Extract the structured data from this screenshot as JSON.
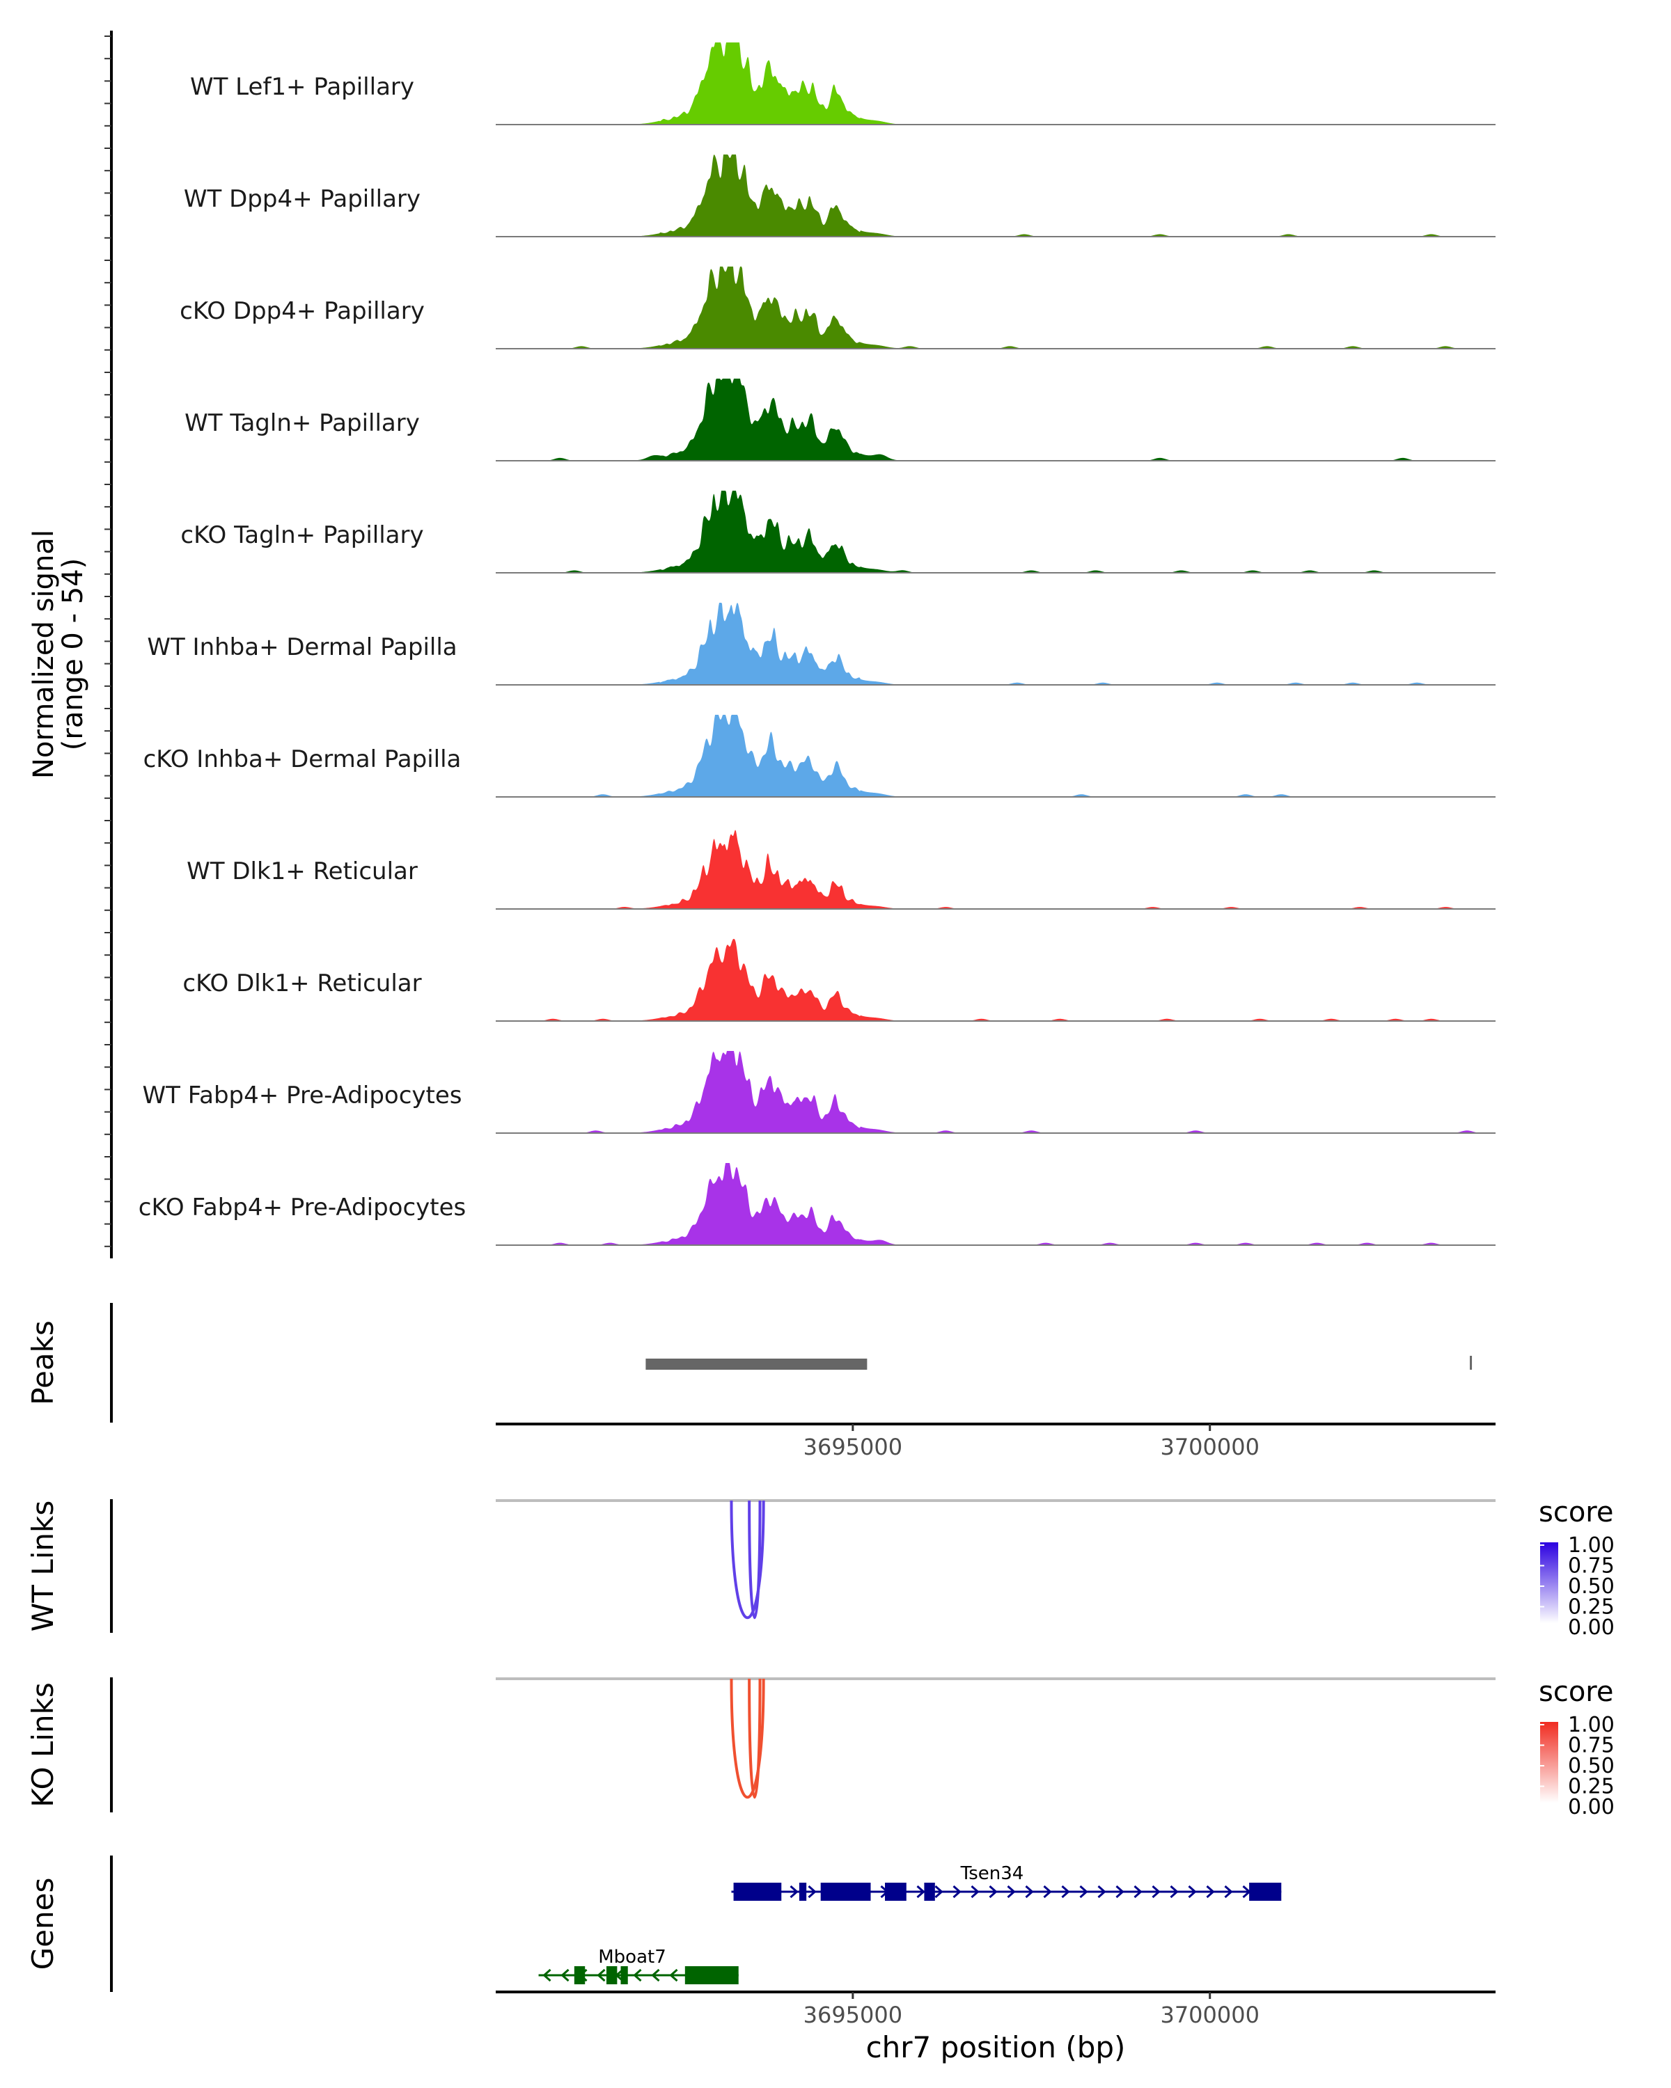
{
  "chart_data": {
    "type": "area",
    "title": "",
    "region": {
      "chrom": "chr7",
      "start": 3690000,
      "end": 3704000
    },
    "coverage": {
      "ylabel_line1": "Normalized signal",
      "ylabel_line2": "(range 0 - 54)",
      "ylim": [
        0,
        54
      ],
      "tracks": [
        {
          "name": "WT Lef1+ Papillary",
          "color": "#66CC00",
          "scale": 0.95,
          "bg": [],
          "sharp": 0.5
        },
        {
          "name": "WT Dpp4+ Papillary",
          "color": "#4A8A00",
          "scale": 0.85,
          "bg": [
            3697400,
            3699300,
            3701100,
            3703100
          ],
          "sharp": 0.5
        },
        {
          "name": "cKO Dpp4+ Papillary",
          "color": "#4A8A00",
          "scale": 0.88,
          "bg": [
            3691200,
            3695800,
            3697200,
            3700800,
            3702000,
            3703300
          ],
          "sharp": 0.5
        },
        {
          "name": "WT Tagln+ Papillary",
          "color": "#006400",
          "scale": 1.0,
          "bg": [
            3690900,
            3692200,
            3695400,
            3699300,
            3702700
          ],
          "sharp": 0.3
        },
        {
          "name": "cKO Tagln+ Papillary",
          "color": "#006400",
          "scale": 0.85,
          "bg": [
            3691100,
            3695700,
            3697500,
            3698400,
            3699600,
            3700600,
            3701400,
            3702300
          ],
          "sharp": 0.6
        },
        {
          "name": "WT Inhba+ Dermal Papilla",
          "color": "#5DA8E8",
          "scale": 0.78,
          "bg": [
            3697300,
            3698500,
            3700100,
            3701200,
            3702000,
            3702900
          ],
          "sharp": 0.6
        },
        {
          "name": "cKO Inhba+ Dermal Papilla",
          "color": "#5DA8E8",
          "scale": 0.92,
          "bg": [
            3691500,
            3698200,
            3700500,
            3701000
          ],
          "sharp": 0.1
        },
        {
          "name": "WT Dlk1+ Reticular",
          "color": "#F83232",
          "scale": 0.7,
          "bg": [
            3691800,
            3696300,
            3699200,
            3700300,
            3702100,
            3703300
          ],
          "sharp": 0.7
        },
        {
          "name": "cKO Dlk1+ Reticular",
          "color": "#F83232",
          "scale": 0.78,
          "bg": [
            3690800,
            3691500,
            3696800,
            3697900,
            3699400,
            3700700,
            3701700,
            3702600,
            3703100
          ],
          "sharp": 0.2
        },
        {
          "name": "WT Fabp4+ Pre-Adipocytes",
          "color": "#A833E8",
          "scale": 0.9,
          "bg": [
            3691400,
            3696300,
            3697500,
            3699800,
            3703600
          ],
          "sharp": 0.4
        },
        {
          "name": "cKO Fabp4+ Pre-Adipocytes",
          "color": "#A833E8",
          "scale": 0.82,
          "bg": [
            3690900,
            3691600,
            3695400,
            3697700,
            3698600,
            3699800,
            3700500,
            3701500,
            3702200,
            3703100
          ],
          "sharp": 0.2
        }
      ]
    },
    "peaks": {
      "label": "Peaks",
      "ranges": [
        [
          3692100,
          3695200
        ],
        [
          3703640,
          3703660
        ]
      ],
      "color": "#666666"
    },
    "xaxis": {
      "ticks": [
        3695000,
        3700000
      ],
      "tick_labels": [
        "3695000",
        "3700000"
      ],
      "xlabel": "chr7 position (bp)"
    },
    "links": [
      {
        "label": "WT Links",
        "color": "#6040E8",
        "arcs": [
          [
            3693300,
            3693750
          ],
          [
            3693550,
            3693700
          ]
        ]
      },
      {
        "label": "KO Links",
        "color": "#F05030",
        "arcs": [
          [
            3693300,
            3693750
          ],
          [
            3693550,
            3693700
          ]
        ]
      }
    ],
    "legends": [
      {
        "title": "score",
        "color_high": "#2B00E0",
        "ticks": [
          "1.00",
          "0.75",
          "0.50",
          "0.25",
          "0.00"
        ]
      },
      {
        "title": "score",
        "color_high": "#F02B20",
        "ticks": [
          "1.00",
          "0.75",
          "0.50",
          "0.25",
          "0.00"
        ]
      }
    ],
    "genes": {
      "label": "Genes",
      "items": [
        {
          "name": "Tsen34",
          "strand": "+",
          "color": "#00008B",
          "start": 3693300,
          "end": 3701000,
          "exons": [
            [
              3693330,
              3694000
            ],
            [
              3694250,
              3694350
            ],
            [
              3694550,
              3695250
            ],
            [
              3695450,
              3695750
            ],
            [
              3696000,
              3696150
            ],
            [
              3700550,
              3701000
            ]
          ]
        },
        {
          "name": "Mboat7",
          "strand": "-",
          "color": "#006400",
          "start": 3690600,
          "end": 3693400,
          "exons": [
            [
              3691100,
              3691250
            ],
            [
              3691550,
              3691700
            ],
            [
              3691750,
              3691850
            ],
            [
              3692650,
              3693400
            ]
          ]
        }
      ]
    }
  }
}
